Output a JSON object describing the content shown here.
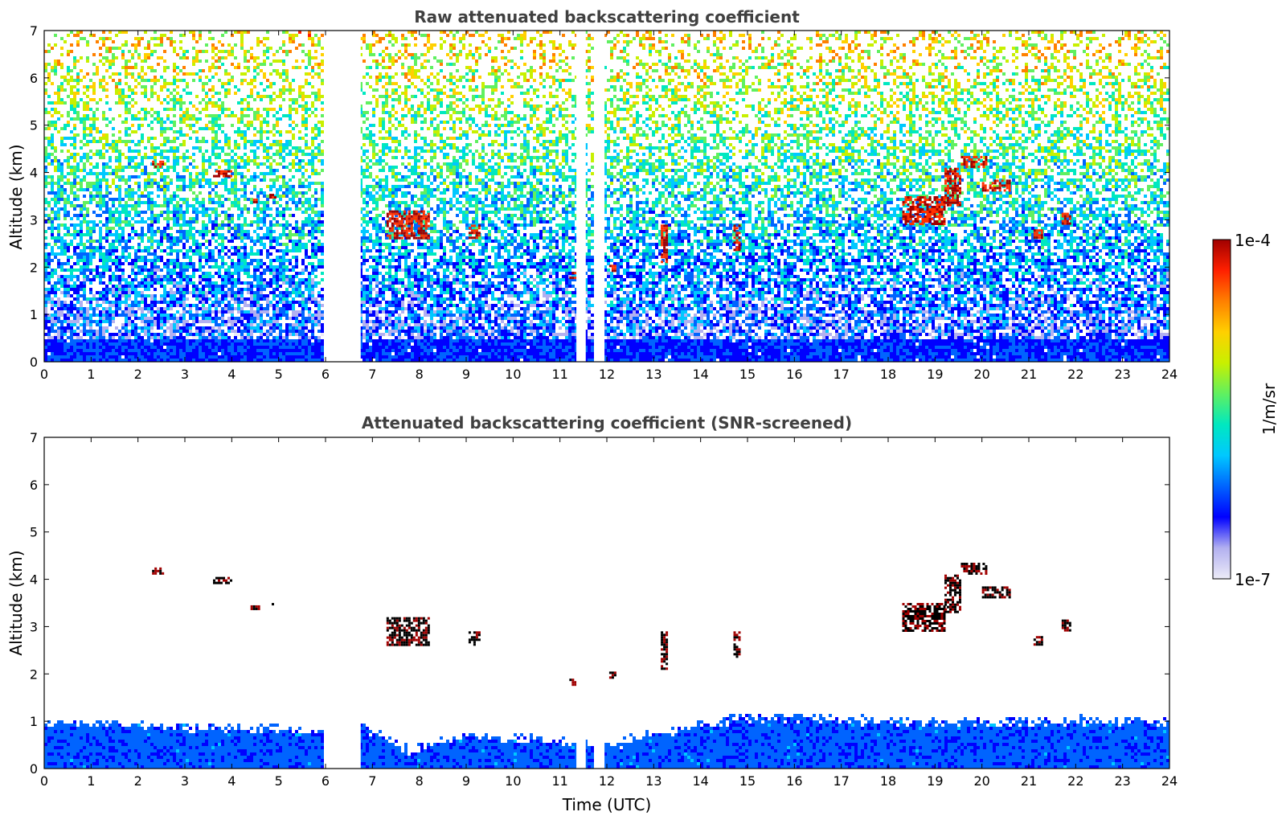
{
  "chart_data": [
    {
      "type": "heatmap",
      "title": "Raw attenuated backscattering coefficient",
      "xlabel": "",
      "ylabel": "Altitude (km)",
      "xlim": [
        0,
        24
      ],
      "ylim": [
        0,
        7
      ],
      "xticks": [
        "0",
        "1",
        "2",
        "3",
        "4",
        "5",
        "6",
        "7",
        "8",
        "9",
        "10",
        "11",
        "12",
        "13",
        "14",
        "15",
        "16",
        "17",
        "18",
        "19",
        "20",
        "21",
        "22",
        "23",
        "24"
      ],
      "yticks": [
        "0",
        "1",
        "2",
        "3",
        "4",
        "5",
        "6",
        "7"
      ],
      "data_gaps_utc": [
        [
          6.0,
          6.75
        ],
        [
          11.35,
          11.55
        ],
        [
          11.75,
          11.95
        ]
      ],
      "cloud_layers": [
        {
          "time": [
            2.3,
            2.55
          ],
          "altitude": [
            4.1,
            4.25
          ]
        },
        {
          "time": [
            3.6,
            4.0
          ],
          "altitude": [
            3.9,
            4.05
          ]
        },
        {
          "time": [
            4.4,
            4.6
          ],
          "altitude": [
            3.35,
            3.45
          ]
        },
        {
          "time": [
            4.8,
            4.95
          ],
          "altitude": [
            3.45,
            3.55
          ]
        },
        {
          "time": [
            7.3,
            8.2
          ],
          "altitude": [
            2.6,
            3.2
          ]
        },
        {
          "time": [
            9.05,
            9.3
          ],
          "altitude": [
            2.6,
            2.9
          ]
        },
        {
          "time": [
            11.2,
            11.35
          ],
          "altitude": [
            1.75,
            1.9
          ]
        },
        {
          "time": [
            12.05,
            12.2
          ],
          "altitude": [
            1.9,
            2.05
          ]
        },
        {
          "time": [
            13.15,
            13.3
          ],
          "altitude": [
            2.1,
            2.9
          ]
        },
        {
          "time": [
            14.7,
            14.85
          ],
          "altitude": [
            2.35,
            2.9
          ]
        },
        {
          "time": [
            18.3,
            19.2
          ],
          "altitude": [
            2.9,
            3.5
          ]
        },
        {
          "time": [
            19.2,
            19.55
          ],
          "altitude": [
            3.3,
            4.1
          ]
        },
        {
          "time": [
            19.55,
            20.1
          ],
          "altitude": [
            4.1,
            4.35
          ]
        },
        {
          "time": [
            20.0,
            20.6
          ],
          "altitude": [
            3.6,
            3.85
          ]
        },
        {
          "time": [
            21.1,
            21.3
          ],
          "altitude": [
            2.6,
            2.8
          ]
        },
        {
          "time": [
            21.7,
            21.9
          ],
          "altitude": [
            2.9,
            3.15
          ]
        }
      ]
    },
    {
      "type": "heatmap",
      "title": "Attenuated backscattering coefficient (SNR-screened)",
      "xlabel": "Time (UTC)",
      "ylabel": "Altitude (km)",
      "xlim": [
        0,
        24
      ],
      "ylim": [
        0,
        7
      ],
      "xticks": [
        "0",
        "1",
        "2",
        "3",
        "4",
        "5",
        "6",
        "7",
        "8",
        "9",
        "10",
        "11",
        "12",
        "13",
        "14",
        "15",
        "16",
        "17",
        "18",
        "19",
        "20",
        "21",
        "22",
        "23",
        "24"
      ],
      "yticks": [
        "0",
        "1",
        "2",
        "3",
        "4",
        "5",
        "6",
        "7"
      ],
      "boundary_layer_top_km": [
        [
          0,
          1.0
        ],
        [
          3,
          0.9
        ],
        [
          6,
          0.8
        ],
        [
          6.75,
          0.9
        ],
        [
          7.8,
          0.4
        ],
        [
          9,
          0.7
        ],
        [
          12,
          0.5
        ],
        [
          15,
          1.1
        ],
        [
          18,
          1.0
        ],
        [
          24,
          1.0
        ]
      ]
    }
  ],
  "colorbar": {
    "label": "1/m/sr",
    "max_label": "1e-4",
    "min_label": "1e-7",
    "scale": "log",
    "range": [
      1e-07,
      0.0001
    ],
    "colormap": [
      "#ecebf7",
      "#b2b0f0",
      "#0000ff",
      "#0064ff",
      "#00c8ff",
      "#00e8c0",
      "#60f060",
      "#c8f000",
      "#ffd000",
      "#ff8000",
      "#ff2000",
      "#a00000"
    ]
  }
}
